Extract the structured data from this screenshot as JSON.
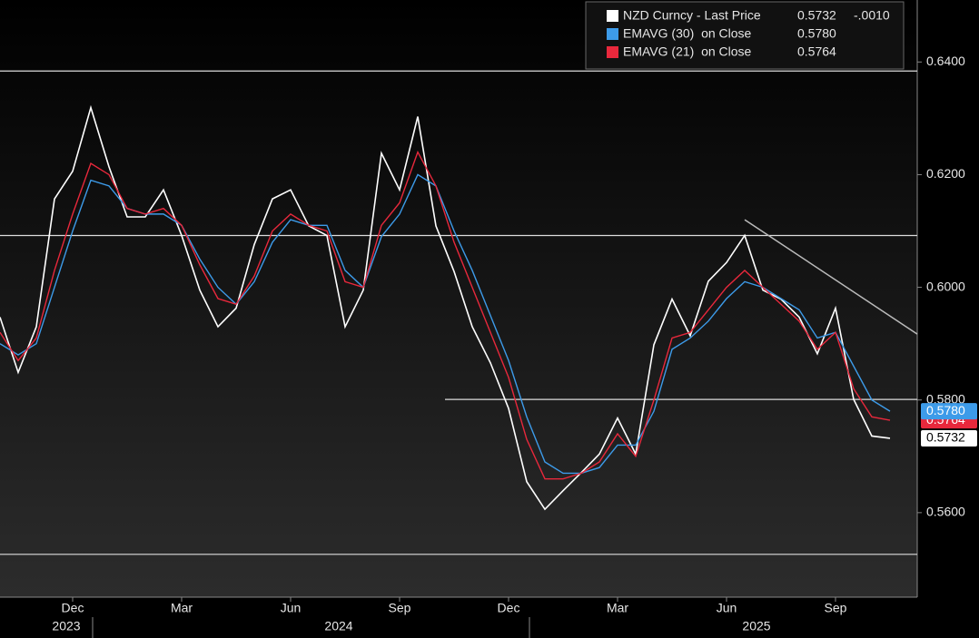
{
  "chart_data": {
    "type": "line",
    "categories": [
      null,
      null,
      null,
      null,
      "Dec",
      null,
      null,
      null,
      null,
      null,
      "Mar",
      null,
      null,
      null,
      null,
      null,
      "Jun",
      null,
      null,
      null,
      null,
      null,
      "Sep",
      null,
      null,
      null,
      null,
      null,
      "Dec",
      null,
      null,
      null,
      null,
      null,
      "Mar",
      null,
      null,
      null,
      null,
      null,
      "Jun",
      null,
      null,
      null,
      null,
      null,
      "Sep",
      null,
      null,
      null
    ],
    "year_ticks": [
      {
        "value": 2,
        "label": "2023"
      },
      {
        "value": 17,
        "label": "2024"
      },
      {
        "value": 40,
        "label": "2025"
      }
    ],
    "series": [
      {
        "name": "NZD Curncy - Last Price",
        "color": "#ffffff",
        "last_label": "0.5732",
        "change_label": "-.0010",
        "values": [
          0.5947,
          0.5849,
          0.593,
          0.6157,
          0.6206,
          0.6319,
          0.6214,
          0.6125,
          0.6125,
          0.6173,
          0.6092,
          0.5995,
          0.593,
          0.5963,
          0.6076,
          0.6157,
          0.6173,
          0.6109,
          0.6092,
          0.593,
          0.5995,
          0.6238,
          0.6173,
          0.6303,
          0.6109,
          0.6028,
          0.593,
          0.5866,
          0.5785,
          0.5655,
          0.5606,
          0.5639,
          0.5671,
          0.5704,
          0.5768,
          0.5704,
          0.5898,
          0.5979,
          0.5914,
          0.6011,
          0.6044,
          0.6092,
          0.5995,
          0.5979,
          0.5947,
          0.5882,
          0.5963,
          0.5801,
          0.5736,
          0.5732
        ]
      },
      {
        "name": "EMAVG (30)  on Close",
        "color": "#3d9be9",
        "last_label": "0.5780",
        "values": [
          0.59,
          0.588,
          0.59,
          0.6,
          0.61,
          0.619,
          0.618,
          0.614,
          0.613,
          0.613,
          0.611,
          0.605,
          0.6,
          0.597,
          0.601,
          0.608,
          0.612,
          0.611,
          0.611,
          0.603,
          0.6,
          0.609,
          0.613,
          0.62,
          0.618,
          0.61,
          0.603,
          0.595,
          0.587,
          0.577,
          0.569,
          0.567,
          0.567,
          0.568,
          0.572,
          0.572,
          0.578,
          0.589,
          0.591,
          0.594,
          0.598,
          0.601,
          0.6,
          0.598,
          0.596,
          0.591,
          0.592,
          0.586,
          0.58,
          0.578
        ]
      },
      {
        "name": "EMAVG (21)  on Close",
        "color": "#e8283c",
        "last_label": "0.5764",
        "values": [
          0.592,
          0.587,
          0.591,
          0.603,
          0.613,
          0.622,
          0.62,
          0.614,
          0.613,
          0.614,
          0.611,
          0.604,
          0.598,
          0.597,
          0.602,
          0.61,
          0.613,
          0.611,
          0.61,
          0.601,
          0.6,
          0.611,
          0.615,
          0.624,
          0.618,
          0.608,
          0.6,
          0.592,
          0.584,
          0.573,
          0.566,
          0.566,
          0.567,
          0.569,
          0.574,
          0.57,
          0.58,
          0.591,
          0.592,
          0.596,
          0.6,
          0.603,
          0.6,
          0.597,
          0.594,
          0.589,
          0.592,
          0.582,
          0.577,
          0.5764
        ]
      }
    ],
    "hlines": [
      0.6384,
      0.6092,
      0.5801,
      0.5526
    ],
    "trendline": {
      "x": [
        41,
        50.5
      ],
      "y": [
        0.612,
        0.5917
      ]
    },
    "ylim": [
      0.545,
      0.651
    ],
    "yticks": [
      {
        "value": 0.56,
        "label": "0.5600"
      },
      {
        "value": 0.58,
        "label": "0.5800"
      },
      {
        "value": 0.6,
        "label": "0.6000"
      },
      {
        "value": 0.62,
        "label": "0.6200"
      },
      {
        "value": 0.64,
        "label": "0.6400"
      }
    ]
  }
}
